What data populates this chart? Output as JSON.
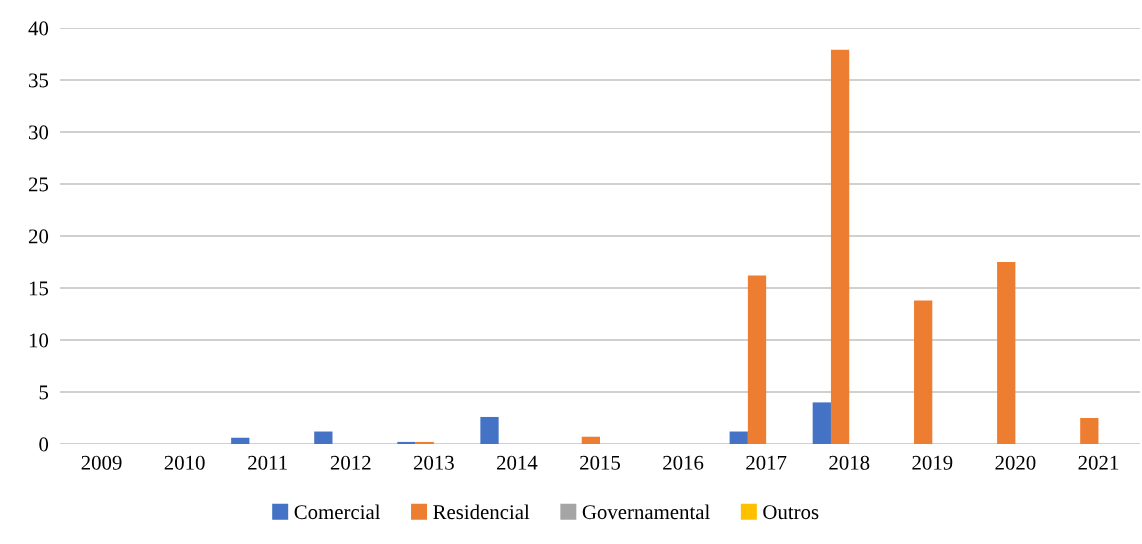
{
  "chart_data": {
    "type": "bar",
    "categories": [
      "2009",
      "2010",
      "2011",
      "2012",
      "2013",
      "2014",
      "2015",
      "2016",
      "2017",
      "2018",
      "2019",
      "2020",
      "2021"
    ],
    "series": [
      {
        "name": "Comercial",
        "color": "#4472c4",
        "values": [
          0,
          0,
          0.6,
          1.2,
          0.2,
          2.6,
          0,
          0,
          1.2,
          4.0,
          0,
          0,
          0
        ]
      },
      {
        "name": "Residencial",
        "color": "#ed7d31",
        "values": [
          0,
          0,
          0,
          0,
          0.2,
          0,
          0.7,
          0,
          16.2,
          37.9,
          13.8,
          17.5,
          2.5
        ]
      },
      {
        "name": "Governamental",
        "color": "#a5a5a5",
        "values": [
          0,
          0,
          0,
          0,
          0,
          0,
          0,
          0,
          0,
          0,
          0,
          0,
          0
        ]
      },
      {
        "name": "Outros",
        "color": "#ffc000",
        "values": [
          0,
          0,
          0,
          0,
          0,
          0,
          0,
          0,
          0,
          0,
          0,
          0,
          0
        ]
      }
    ],
    "ylim": [
      0,
      40
    ],
    "yticks": [
      0,
      5,
      10,
      15,
      20,
      25,
      30,
      35,
      40
    ],
    "grid": "y",
    "legend": "bottom"
  }
}
